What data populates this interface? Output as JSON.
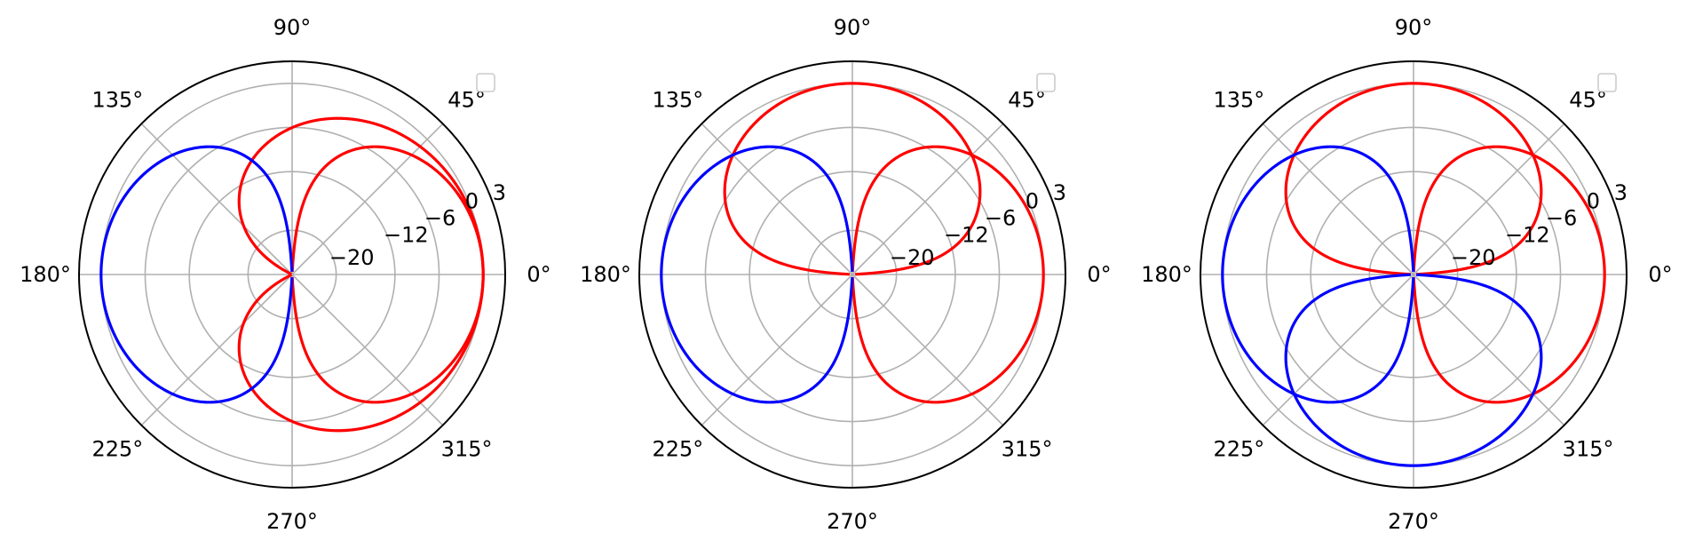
{
  "chart_data": [
    {
      "type": "line",
      "projection": "polar",
      "title": "",
      "r_range_db": [
        -26,
        3
      ],
      "r_ticks": [
        "3",
        "0",
        "−6",
        "−12",
        "−20"
      ],
      "r_tick_values": [
        3,
        0,
        -6,
        -12,
        -20
      ],
      "r_label_angle_deg": 22.5,
      "theta_ticks": [
        "0°",
        "45°",
        "90°",
        "135°",
        "180°",
        "225°",
        "270°",
        "315°"
      ],
      "theta_tick_values": [
        0,
        45,
        90,
        135,
        180,
        225,
        270,
        315
      ],
      "grid": true,
      "legend": {
        "placement": "top-right",
        "entries": []
      },
      "series": [
        {
          "color": "#ff0000",
          "shape": "cardioid",
          "max_db": 0,
          "direction_deg": 0,
          "lobes": 1
        },
        {
          "color": "#ff0000",
          "shape": "cos",
          "max_db": 0,
          "direction_deg": 0,
          "lobes": 1
        },
        {
          "color": "#0000ff",
          "shape": "cos",
          "max_db": 0,
          "direction_deg": 180,
          "lobes": 1
        }
      ]
    },
    {
      "type": "line",
      "projection": "polar",
      "title": "",
      "r_range_db": [
        -26,
        3
      ],
      "r_ticks": [
        "3",
        "0",
        "−6",
        "−12",
        "−20"
      ],
      "r_tick_values": [
        3,
        0,
        -6,
        -12,
        -20
      ],
      "r_label_angle_deg": 22.5,
      "theta_ticks": [
        "0°",
        "45°",
        "90°",
        "135°",
        "180°",
        "225°",
        "270°",
        "315°"
      ],
      "theta_tick_values": [
        0,
        45,
        90,
        135,
        180,
        225,
        270,
        315
      ],
      "grid": true,
      "legend": {
        "placement": "top-right",
        "entries": []
      },
      "series": [
        {
          "color": "#ff0000",
          "shape": "cos",
          "max_db": 0,
          "direction_deg": 90,
          "lobes": 1
        },
        {
          "color": "#ff0000",
          "shape": "cos",
          "max_db": 0,
          "direction_deg": 0,
          "lobes": 1
        },
        {
          "color": "#0000ff",
          "shape": "cos",
          "max_db": 0,
          "direction_deg": 180,
          "lobes": 1
        }
      ]
    },
    {
      "type": "line",
      "projection": "polar",
      "title": "",
      "r_range_db": [
        -26,
        3
      ],
      "r_ticks": [
        "3",
        "0",
        "−6",
        "−12",
        "−20"
      ],
      "r_tick_values": [
        3,
        0,
        -6,
        -12,
        -20
      ],
      "r_label_angle_deg": 22.5,
      "theta_ticks": [
        "0°",
        "45°",
        "90°",
        "135°",
        "180°",
        "225°",
        "270°",
        "315°"
      ],
      "theta_tick_values": [
        0,
        45,
        90,
        135,
        180,
        225,
        270,
        315
      ],
      "grid": true,
      "legend": {
        "placement": "top-right",
        "entries": []
      },
      "series": [
        {
          "color": "#ff0000",
          "shape": "cos",
          "max_db": 0,
          "direction_deg": 90,
          "lobes": 1
        },
        {
          "color": "#ff0000",
          "shape": "cos",
          "max_db": 0,
          "direction_deg": 0,
          "lobes": 1
        },
        {
          "color": "#0000ff",
          "shape": "cos",
          "max_db": 0,
          "direction_deg": 180,
          "lobes": 1
        },
        {
          "color": "#0000ff",
          "shape": "cos",
          "max_db": 0,
          "direction_deg": 270,
          "lobes": 1
        }
      ]
    }
  ]
}
